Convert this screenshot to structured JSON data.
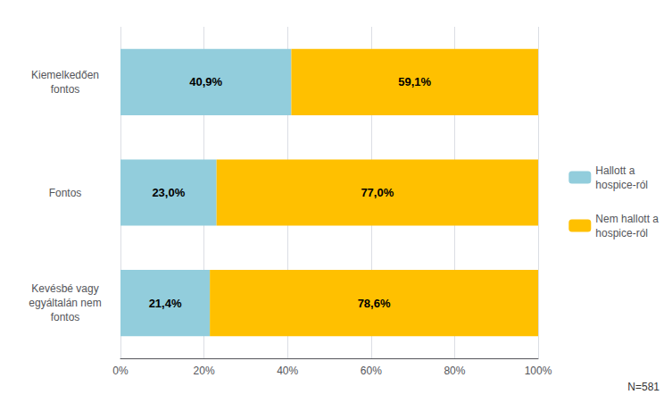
{
  "chart_data": {
    "type": "bar",
    "orientation": "horizontal",
    "stacked": true,
    "categories": [
      "Kiemelkedően\nfontos",
      "Fontos",
      "Kevésbé vagy\negyáltalán nem\nfontos"
    ],
    "series": [
      {
        "name": "Hallott a\nhospice-ról",
        "color": "#92CDDC",
        "values": [
          40.9,
          23.0,
          21.4
        ],
        "value_labels": [
          "40,9%",
          "23,0%",
          "21,4%"
        ]
      },
      {
        "name": "Nem hallott a\nhospice-ról",
        "color": "#FFC000",
        "values": [
          59.1,
          77.0,
          78.6
        ],
        "value_labels": [
          "59,1%",
          "77,0%",
          "78,6%"
        ]
      }
    ],
    "xlim": [
      0,
      100
    ],
    "xticks": [
      {
        "value": 0,
        "label": "0%"
      },
      {
        "value": 20,
        "label": "20%"
      },
      {
        "value": 40,
        "label": "40%"
      },
      {
        "value": 60,
        "label": "60%"
      },
      {
        "value": 80,
        "label": "80%"
      },
      {
        "value": 100,
        "label": "100%"
      }
    ],
    "grid": true,
    "legend": "right",
    "data_labels": true,
    "annotations": [
      "N=581"
    ]
  }
}
